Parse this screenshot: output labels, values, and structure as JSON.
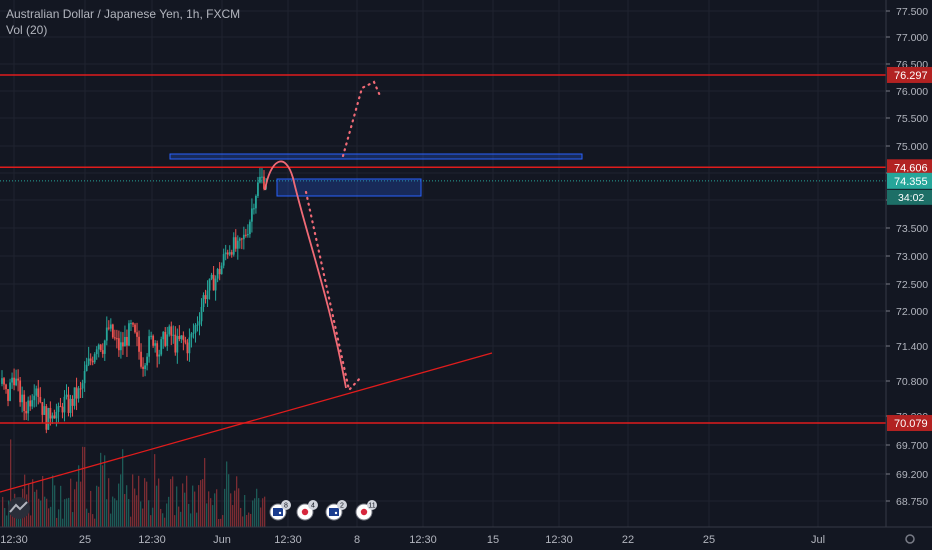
{
  "header": {
    "title": "Australian Dollar / Japanese Yen, 1h, FXCM",
    "volume_label": "Vol (20)"
  },
  "colors": {
    "background": "#131722",
    "grid": "#1f2330",
    "up": "#26a69a",
    "down": "#ef5350",
    "level_line": "#e01c1c",
    "price_line": "#26a69a",
    "zone": "#2962ff",
    "projection": "#f06a76",
    "axis_text": "#b2b5be"
  },
  "chart_data": {
    "type": "candlestick",
    "symbol": "AUDJPY",
    "interval": "1h",
    "ylim": [
      68.5,
      77.7
    ],
    "y_ticks": [
      "77.500",
      "77.000",
      "76.500",
      "76.000",
      "75.500",
      "75.000",
      "74.500",
      "74.000",
      "73.500",
      "73.000",
      "72.500",
      "72.000",
      "71.400",
      "70.800",
      "70.200",
      "69.700",
      "69.200",
      "68.750"
    ],
    "x_ticks": [
      "12:30",
      "25",
      "12:30",
      "Jun",
      "12:30",
      "8",
      "12:30",
      "15",
      "12:30",
      "22",
      "25",
      "Jul"
    ],
    "price_path": [
      [
        "start",
        70.75
      ],
      [
        "",
        70.5
      ],
      [
        "",
        70.95
      ],
      [
        "",
        70.6
      ],
      [
        "",
        70.3
      ],
      [
        "",
        70.5
      ],
      [
        "",
        70.8
      ],
      [
        "",
        70.4
      ],
      [
        "",
        70.1
      ],
      [
        "",
        70.35
      ],
      [
        "",
        70.2
      ],
      [
        "",
        70.45
      ],
      [
        "",
        70.35
      ],
      [
        "",
        70.55
      ],
      [
        "",
        70.6
      ],
      [
        "",
        71.0
      ],
      [
        "",
        71.2
      ],
      [
        "",
        71.5
      ],
      [
        "",
        71.4
      ],
      [
        "",
        71.7
      ],
      [
        "",
        71.5
      ],
      [
        "",
        71.35
      ],
      [
        "",
        71.5
      ],
      [
        "",
        71.7
      ],
      [
        "",
        71.45
      ],
      [
        "",
        71.1
      ],
      [
        "",
        71.4
      ],
      [
        "",
        71.55
      ],
      [
        "",
        71.3
      ],
      [
        "",
        71.55
      ],
      [
        "",
        71.6
      ],
      [
        "",
        71.4
      ],
      [
        "",
        71.5
      ],
      [
        "",
        71.4
      ],
      [
        "",
        71.6
      ],
      [
        "",
        71.9
      ],
      [
        "",
        72.3
      ],
      [
        "",
        72.45
      ],
      [
        "",
        72.6
      ],
      [
        "",
        72.8
      ],
      [
        "",
        73.1
      ],
      [
        "",
        73.2
      ],
      [
        "",
        73.1
      ],
      [
        "",
        73.3
      ],
      [
        "",
        73.6
      ],
      [
        "",
        74.1
      ],
      [
        "",
        74.4
      ],
      [
        "end",
        74.355
      ]
    ],
    "levels": [
      {
        "label": "76.297",
        "value": 76.297
      },
      {
        "label": "74.606",
        "value": 74.606
      },
      {
        "label": "70.079",
        "value": 70.079
      }
    ],
    "current": {
      "label": "74.355",
      "value": 74.355,
      "countdown": "34:02"
    },
    "zones": [
      {
        "from_x": "Jun 1 04:00",
        "to_x": "Jun 12 00:00",
        "top": 74.8,
        "bottom": 74.7
      },
      {
        "from_x": "Jun 2 20:00",
        "to_x": "Jun 6 08:00",
        "top": 74.38,
        "bottom": 74.07
      }
    ],
    "volume_max": 1
  },
  "event_badges": [
    {
      "icon": "au-flag-icon",
      "count": "8"
    },
    {
      "icon": "jp-flag-icon",
      "count": "4"
    },
    {
      "icon": "au-flag-icon",
      "count": "2"
    },
    {
      "icon": "jp-flag-icon",
      "count": "11"
    }
  ]
}
